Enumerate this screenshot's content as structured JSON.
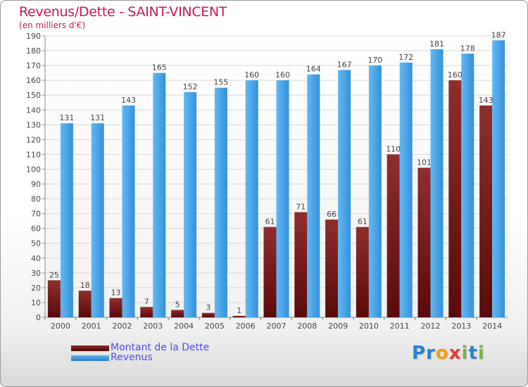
{
  "title": "Revenus/Dette - SAINT-VINCENT",
  "subtitle": "(en milliers d'€)",
  "legend": {
    "debt_label": "Montant de la Dette",
    "revenue_label": "Revenus"
  },
  "logo": {
    "text": "Proxiti",
    "letters": [
      "P",
      "r",
      "o",
      "x",
      "i",
      "t",
      "i"
    ],
    "colors": [
      "#2a7fd4",
      "#2a7fd4",
      "#f39c12",
      "#e53935",
      "#7cb342",
      "#2a7fd4",
      "#7cb342"
    ]
  },
  "colors": {
    "debt": "#7a1c1c",
    "revenue": "#3d9be4",
    "title": "#c2185b",
    "legend_text": "#4a4af0"
  },
  "chart_data": {
    "type": "bar",
    "title": "Revenus/Dette - SAINT-VINCENT",
    "subtitle": "(en milliers d'€)",
    "categories": [
      "2000",
      "2001",
      "2002",
      "2003",
      "2004",
      "2005",
      "2006",
      "2007",
      "2008",
      "2009",
      "2010",
      "2011",
      "2012",
      "2013",
      "2014"
    ],
    "series": [
      {
        "name": "Montant de la Dette",
        "values": [
          25,
          18,
          13,
          7,
          5,
          3,
          1,
          61,
          71,
          66,
          61,
          110,
          101,
          160,
          143
        ]
      },
      {
        "name": "Revenus",
        "values": [
          131,
          131,
          143,
          165,
          152,
          155,
          160,
          160,
          164,
          167,
          170,
          172,
          181,
          178,
          187
        ]
      }
    ],
    "ylim": [
      0,
      190
    ],
    "yticks": [
      0,
      10,
      20,
      30,
      40,
      50,
      60,
      70,
      80,
      90,
      100,
      110,
      120,
      130,
      140,
      150,
      160,
      170,
      180,
      190
    ],
    "grid": true,
    "legend_position": "bottom-left"
  }
}
